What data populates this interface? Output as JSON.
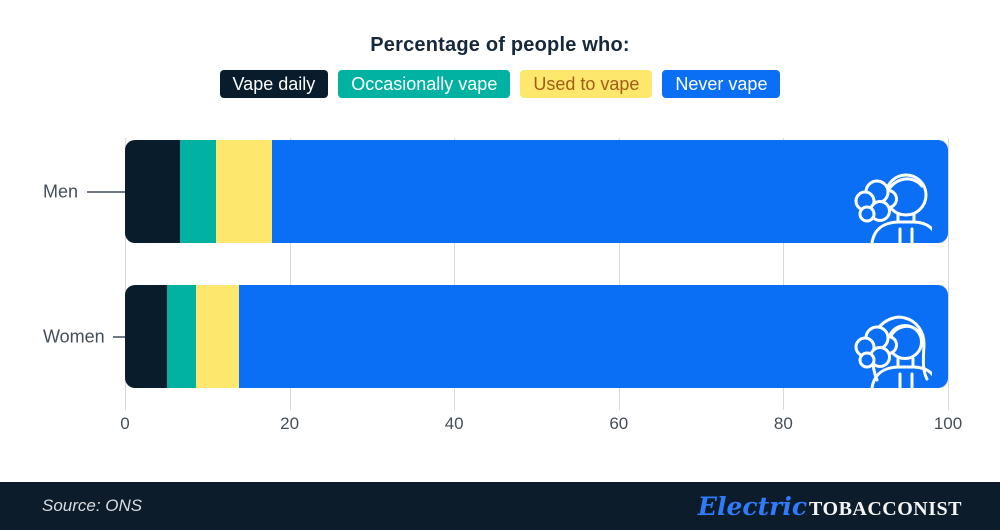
{
  "title": "Percentage of people who:",
  "legend": [
    {
      "label": "Vape daily",
      "bg": "#081c2b",
      "text_color": "#ffffff"
    },
    {
      "label": "Occasionally vape",
      "bg": "#01b2a2",
      "text_color": "#ffffff"
    },
    {
      "label": "Used to vape",
      "bg": "#fee76d",
      "text_color": "#a35d17"
    },
    {
      "label": "Never vape",
      "bg": "#0a6ff5",
      "text_color": "#ffffff"
    }
  ],
  "chart_data": {
    "type": "bar",
    "orientation": "horizontal",
    "stacked": true,
    "title": "Percentage of people who:",
    "categories": [
      "Men",
      "Women"
    ],
    "series": [
      {
        "name": "Vape daily",
        "color": "#081c2b",
        "values": [
          6.7,
          5.1
        ]
      },
      {
        "name": "Occasionally vape",
        "color": "#01b2a2",
        "values": [
          4.4,
          3.5
        ]
      },
      {
        "name": "Used to vape",
        "color": "#fee76d",
        "values": [
          6.8,
          5.2
        ]
      },
      {
        "name": "Never vape",
        "color": "#0a6ff5",
        "values": [
          82.1,
          86.2
        ]
      }
    ],
    "xlim": [
      0,
      100
    ],
    "x_ticks": [
      0,
      20,
      40,
      60,
      80,
      100
    ],
    "grid": true,
    "legend_position": "top"
  },
  "icons": {
    "men_bar": "man-vaping-icon",
    "women_bar": "woman-vaping-icon"
  },
  "colors": {
    "grid": "#d9d9d9",
    "axis_text": "#454e57",
    "footer_bg": "#0d1c2a",
    "logo_blue": "#2f7bfc"
  },
  "footer": {
    "source": "Source: ONS",
    "brand_script": "Electric",
    "brand_caps": "TOBACCONIST"
  }
}
